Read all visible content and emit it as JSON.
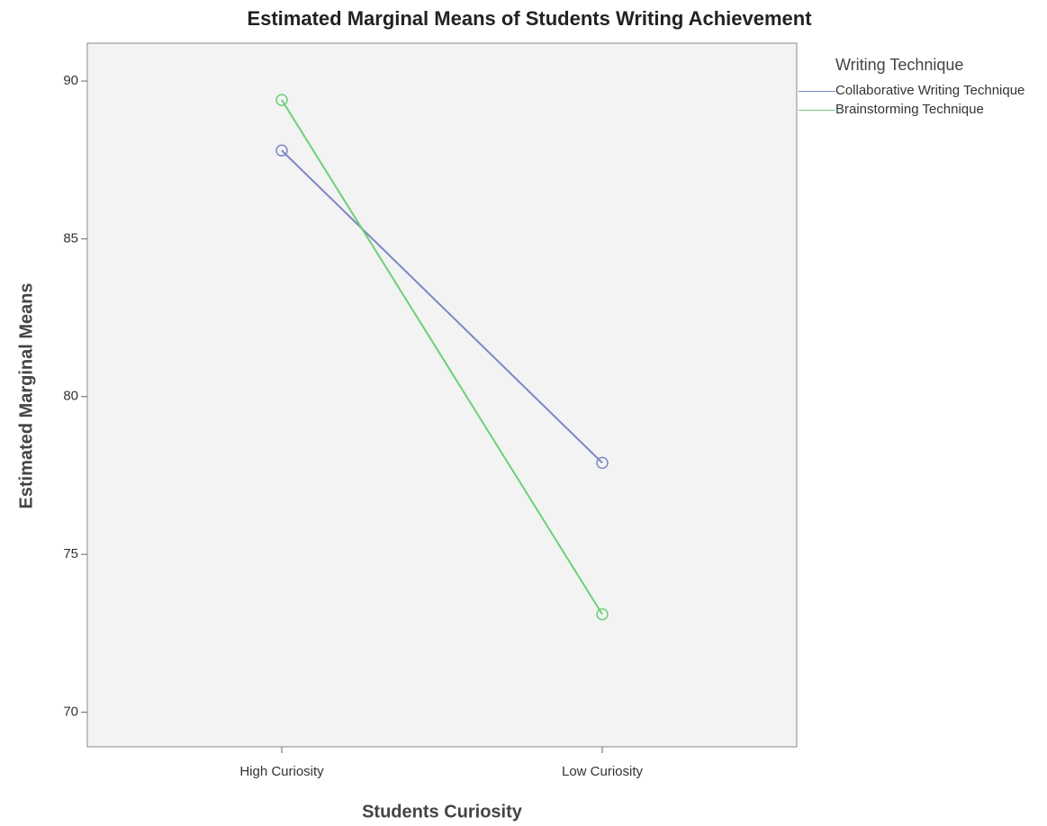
{
  "chart_data": {
    "type": "line",
    "title": "Estimated Marginal Means of Students Writing Achievement",
    "x_label": "Students Curiosity",
    "y_label": "Estimated Marginal Means",
    "categories": [
      "High Curiosity",
      "Low Curiosity"
    ],
    "legend_title": "Writing Technique",
    "series": [
      {
        "name": "Collaborative Writing Technique",
        "color": "#7b86c6",
        "values": [
          87.8,
          77.9
        ]
      },
      {
        "name": "Brainstorming Technique",
        "color": "#6fce7a",
        "values": [
          89.4,
          73.1
        ]
      }
    ],
    "ylim": [
      68.9,
      91.2
    ],
    "yticks": [
      70,
      75,
      80,
      85,
      90
    ],
    "legend_position": "right"
  }
}
